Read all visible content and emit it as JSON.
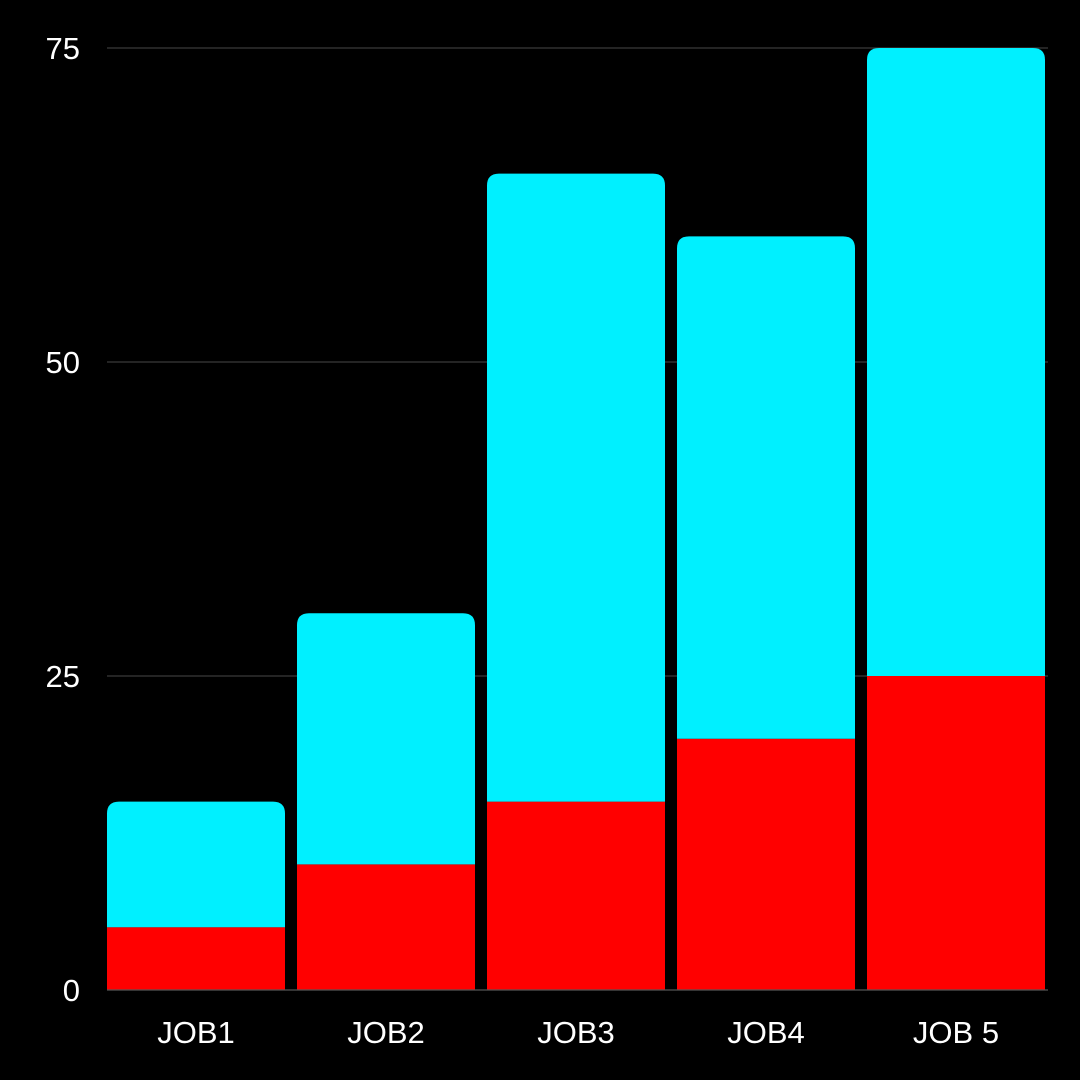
{
  "chart_data": {
    "type": "bar",
    "stacked": true,
    "categories": [
      "JOB1",
      "JOB2",
      "JOB3",
      "JOB4",
      "JOB 5"
    ],
    "series": [
      {
        "values": [
          5,
          10,
          15,
          20,
          25
        ],
        "color": "#ff0000"
      },
      {
        "values": [
          10,
          20,
          50,
          40,
          50
        ],
        "color": "#00f0ff"
      }
    ],
    "totals": [
      15,
      30,
      65,
      60,
      75
    ],
    "ylim": [
      0,
      75
    ],
    "yticks": [
      0,
      25,
      50,
      75
    ],
    "grid": true,
    "legend": "none",
    "title": "",
    "xlabel": "",
    "ylabel": "",
    "background": "#000000"
  }
}
